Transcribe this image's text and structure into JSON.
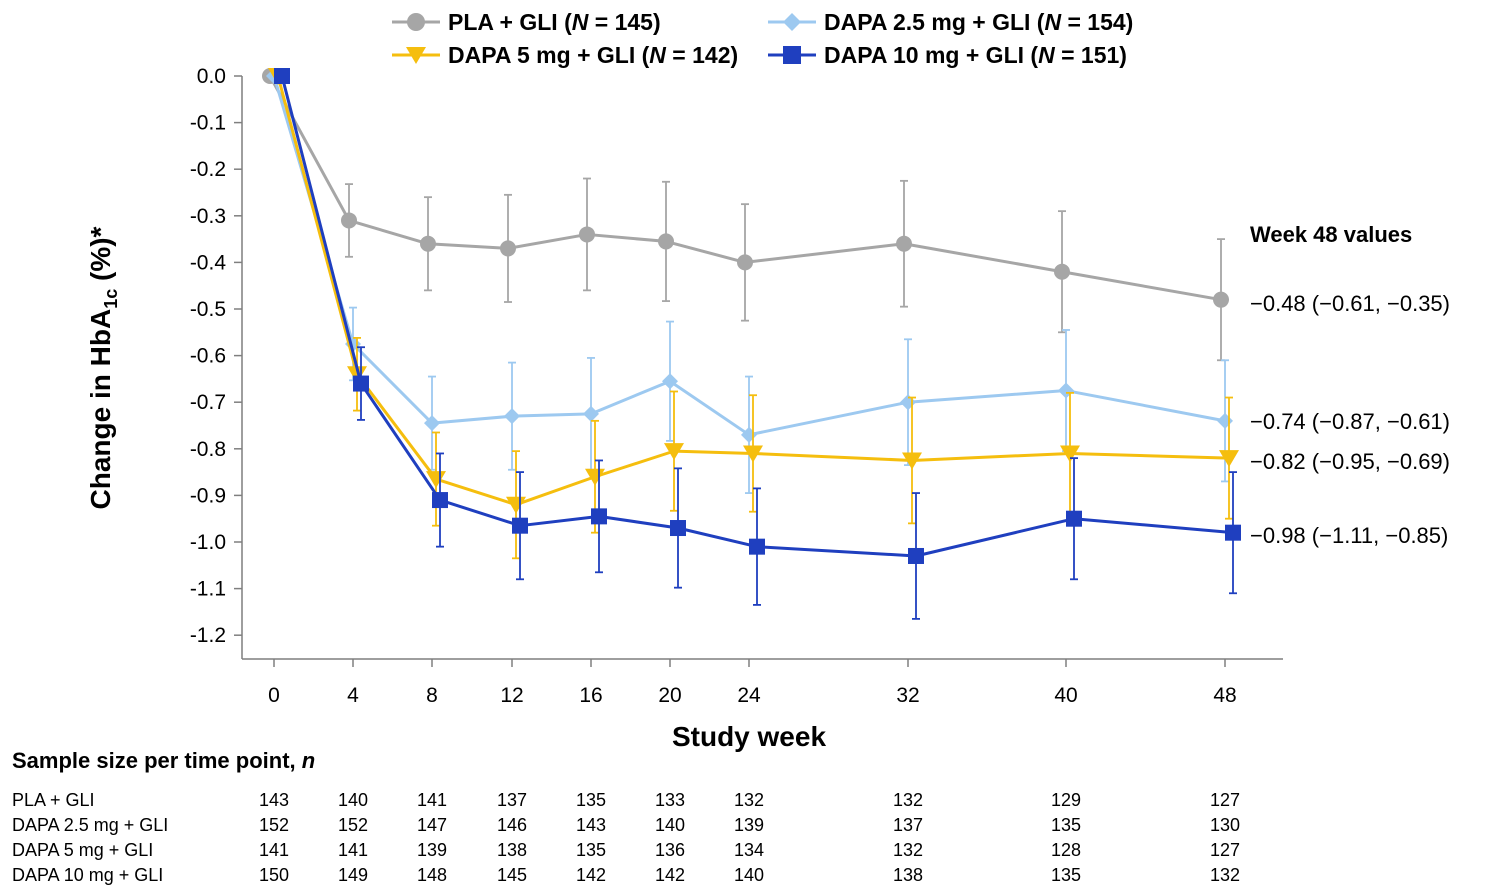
{
  "chart_data": {
    "type": "line",
    "xlabel": "Study week",
    "ylabel_main": "Change in HbA",
    "ylabel_sub": "1c",
    "ylabel_tail": " (%)*",
    "x": [
      0,
      4,
      8,
      12,
      16,
      20,
      24,
      32,
      40,
      48
    ],
    "x_ticks": [
      "0",
      "4",
      "8",
      "12",
      "16",
      "20",
      "24",
      "32",
      "40",
      "48"
    ],
    "ylim": [
      -1.25,
      0.0
    ],
    "y_ticks": [
      "0.0",
      "-0.1",
      "-0.2",
      "-0.3",
      "-0.4",
      "-0.5",
      "-0.6",
      "-0.7",
      "-0.8",
      "-0.9",
      "-1.0",
      "-1.1",
      "-1.2"
    ],
    "y_tick_values": [
      0.0,
      -0.1,
      -0.2,
      -0.3,
      -0.4,
      -0.5,
      -0.6,
      -0.7,
      -0.8,
      -0.9,
      -1.0,
      -1.1,
      -1.2
    ],
    "grid": false,
    "legend_position": "top",
    "series": [
      {
        "key": "pla",
        "name_pre": "PLA + GLI (",
        "name_n": "N",
        "name_post": " = 145)",
        "color": "#a6a6a6",
        "marker": "circle",
        "values": [
          0.0,
          -0.31,
          -0.36,
          -0.37,
          -0.34,
          -0.355,
          -0.4,
          -0.36,
          -0.42,
          -0.48
        ],
        "err": [
          0,
          0.078,
          0.1,
          0.115,
          0.12,
          0.128,
          0.125,
          0.135,
          0.13,
          0.13
        ]
      },
      {
        "key": "d25",
        "name_pre": "DAPA 2.5 mg + GLI (",
        "name_n": "N",
        "name_post": " = 154)",
        "color": "#9dc9f0",
        "marker": "diamond",
        "values": [
          0.0,
          -0.575,
          -0.745,
          -0.73,
          -0.725,
          -0.655,
          -0.77,
          -0.7,
          -0.675,
          -0.74
        ],
        "err": [
          0,
          0.078,
          0.1,
          0.115,
          0.12,
          0.128,
          0.125,
          0.135,
          0.13,
          0.13
        ]
      },
      {
        "key": "d5",
        "name_pre": "DAPA 5 mg + GLI (",
        "name_n": "N",
        "name_post": " = 142)",
        "color": "#f5be0e",
        "marker": "triangle-down",
        "values": [
          0.0,
          -0.64,
          -0.865,
          -0.92,
          -0.86,
          -0.805,
          -0.81,
          -0.825,
          -0.81,
          -0.82
        ],
        "err": [
          0,
          0.078,
          0.1,
          0.115,
          0.12,
          0.128,
          0.125,
          0.135,
          0.13,
          0.13
        ]
      },
      {
        "key": "d10",
        "name_pre": "DAPA 10 mg + GLI (",
        "name_n": "N",
        "name_post": " = 151)",
        "color": "#1f3fbf",
        "marker": "square",
        "values": [
          0.0,
          -0.66,
          -0.91,
          -0.965,
          -0.945,
          -0.97,
          -1.01,
          -1.03,
          -0.95,
          -0.98
        ],
        "err": [
          0,
          0.078,
          0.1,
          0.115,
          0.12,
          0.128,
          0.125,
          0.135,
          0.13,
          0.13
        ]
      }
    ],
    "annotations": {
      "title": "Week 48 values",
      "values": [
        "−0.48 (−0.61, −0.35)",
        "−0.74 (−0.87, −0.61)",
        "−0.82 (−0.95, −0.69)",
        "−0.98 (−1.11, −0.85)"
      ]
    },
    "sample_table": {
      "title_pre": "Sample size per time point, ",
      "title_n": "n",
      "rows": [
        {
          "label": "PLA + GLI",
          "values": [
            "143",
            "140",
            "141",
            "137",
            "135",
            "133",
            "132",
            "132",
            "129",
            "127"
          ]
        },
        {
          "label": "DAPA 2.5 mg + GLI",
          "values": [
            "152",
            "152",
            "147",
            "146",
            "143",
            "140",
            "139",
            "137",
            "135",
            "130"
          ]
        },
        {
          "label": "DAPA 5 mg + GLI",
          "values": [
            "141",
            "141",
            "139",
            "138",
            "135",
            "136",
            "134",
            "132",
            "128",
            "127"
          ]
        },
        {
          "label": "DAPA 10 mg + GLI",
          "values": [
            "150",
            "149",
            "148",
            "145",
            "142",
            "142",
            "140",
            "138",
            "135",
            "132"
          ]
        }
      ]
    }
  }
}
